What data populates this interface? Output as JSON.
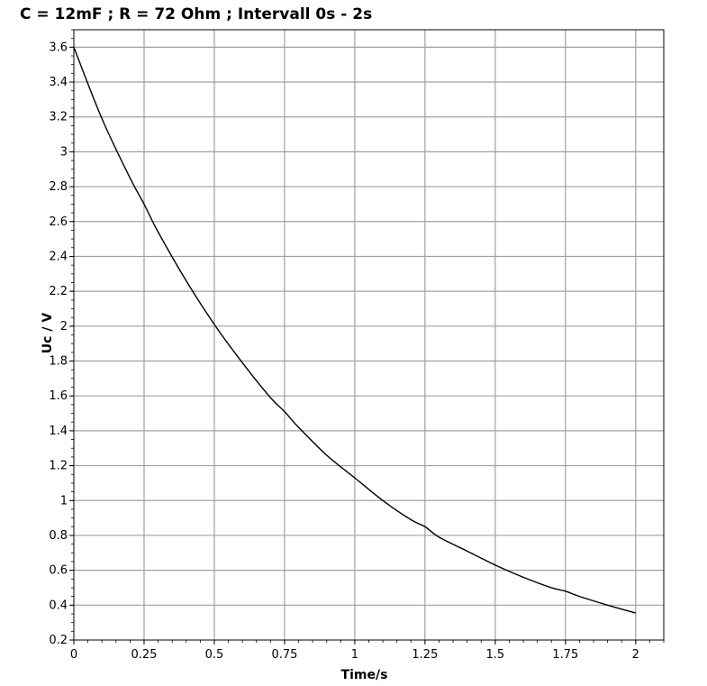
{
  "chart_data": {
    "type": "line",
    "title": "C = 12mF ; R = 72 Ohm ; Intervall 0s - 2s",
    "xlabel": "Time/s",
    "ylabel": "Uc / V",
    "xlim": [
      0,
      2.1
    ],
    "ylim": [
      0.2,
      3.7
    ],
    "x_ticks": [
      0,
      0.25,
      0.5,
      0.75,
      1,
      1.25,
      1.5,
      1.75,
      2
    ],
    "x_tick_labels": [
      "0",
      "0.25",
      "0.5",
      "0.75",
      "1",
      "1.25",
      "1.5",
      "1.75",
      "2"
    ],
    "y_ticks": [
      0.2,
      0.4,
      0.6,
      0.8,
      1,
      1.2,
      1.4,
      1.6,
      1.8,
      2,
      2.2,
      2.4,
      2.6,
      2.8,
      3,
      3.2,
      3.4,
      3.6
    ],
    "y_tick_labels": [
      "0.2",
      "0.4",
      "0.6",
      "0.8",
      "1",
      "1.2",
      "1.4",
      "1.6",
      "1.8",
      "2",
      "2.2",
      "2.4",
      "2.6",
      "2.8",
      "3",
      "3.2",
      "3.4",
      "3.6"
    ],
    "grid": true,
    "line_color": "#000000",
    "grid_color": "#a0a0a0",
    "series": [
      {
        "x": [
          0,
          0.1,
          0.2,
          0.25,
          0.3,
          0.4,
          0.5,
          0.6,
          0.7,
          0.75,
          0.8,
          0.9,
          1,
          1.1,
          1.2,
          1.25,
          1.3,
          1.4,
          1.5,
          1.6,
          1.7,
          1.75,
          1.8,
          1.9,
          2
        ],
        "y": [
          3.6,
          3.19,
          2.85,
          2.7,
          2.54,
          2.26,
          2.01,
          1.79,
          1.59,
          1.51,
          1.42,
          1.26,
          1.13,
          1.0,
          0.89,
          0.85,
          0.79,
          0.71,
          0.63,
          0.56,
          0.5,
          0.48,
          0.45,
          0.4,
          0.355
        ]
      }
    ]
  }
}
